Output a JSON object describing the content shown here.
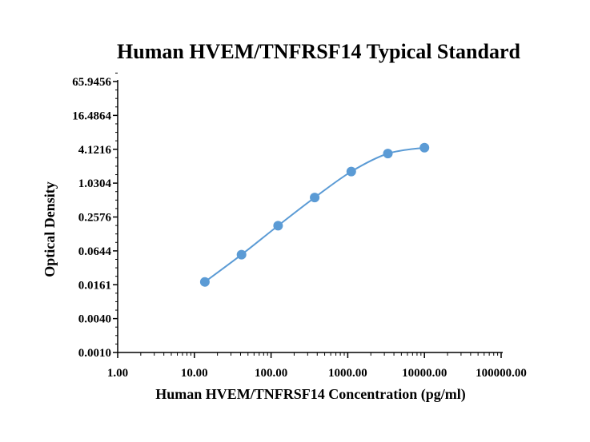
{
  "chart_data": {
    "type": "line",
    "title": "Human HVEM/TNFRSF14 Typical Standard",
    "xlabel": "Human HVEM/TNFRSF14 Concentration (pg/ml)",
    "ylabel": "Optical Density",
    "x_scale": "log10",
    "y_scale": "log2",
    "xlim": [
      1,
      100000
    ],
    "ylim": [
      0.001,
      65.9456
    ],
    "x_ticks": [
      "1.00",
      "10.00",
      "100.00",
      "1000.00",
      "10000.00",
      "100000.00"
    ],
    "y_ticks": [
      "0.0010",
      "0.0040",
      "0.0161",
      "0.0644",
      "0.2576",
      "1.0304",
      "4.1216",
      "16.4864",
      "65.9456"
    ],
    "grid": false,
    "legend": "none",
    "series": [
      {
        "x": [
          13.7,
          41.2,
          123.5,
          370.4,
          1111.1,
          3333.3,
          10000
        ],
        "y": [
          0.018,
          0.055,
          0.18,
          0.57,
          1.65,
          3.45,
          4.4
        ]
      }
    ],
    "colors": {
      "line": "#5b9bd5",
      "marker": "#5b9bd5",
      "axis": "#000000"
    }
  }
}
